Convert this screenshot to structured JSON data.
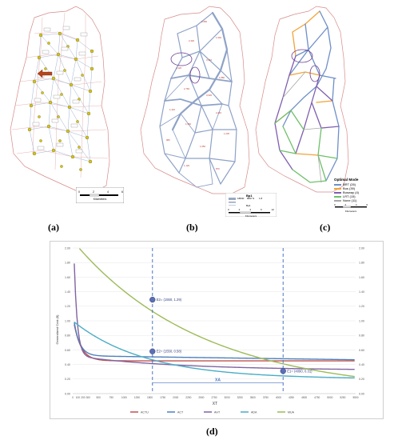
{
  "labels": {
    "a": "(a)",
    "b": "(b)",
    "c": "(c)",
    "d": "(d)"
  },
  "panel_a": {
    "scale_ticks": [
      "0",
      "2",
      "4",
      "6"
    ],
    "scale_unit": "Kilometers"
  },
  "panel_b": {
    "legend_title": "Bp1",
    "legend_entries": [
      "18840",
      "8667.9",
      "1.8"
    ],
    "legend_sub": "Bp4",
    "scale_ticks": [
      "0",
      "2",
      "4",
      "6",
      "12"
    ],
    "scale_unit": "Kilometers"
  },
  "panel_c": {
    "legend_title": "Optimal Mode",
    "modes": [
      {
        "label": "BRT (26)",
        "color": "#6f8fc8"
      },
      {
        "label": "Bus (39)",
        "color": "#f2a33a"
      },
      {
        "label": "Busway (4)",
        "color": "#7f5fb0"
      },
      {
        "label": "LRT (15)",
        "color": "#6fc06a"
      },
      {
        "label": "None (11)",
        "color": "#a7a7a7"
      }
    ],
    "scale_ticks": [
      "0",
      "2",
      "4",
      "6"
    ],
    "scale_unit": "Kilometers"
  },
  "chart_data": {
    "type": "line",
    "ylabel": "Generalized Cost ($)",
    "xlabel": "XT",
    "ylim": [
      0,
      2.0
    ],
    "xlim": [
      0,
      5500
    ],
    "y_ticks_left": [
      "0.00",
      "0.20",
      "0.40",
      "0.60",
      "0.80",
      "1.00",
      "1.20",
      "1.40",
      "1.60",
      "1.80",
      "2.00"
    ],
    "y_ticks_right": [
      "0.00",
      "0.20",
      "0.40",
      "0.60",
      "0.80",
      "1.00",
      "1.20",
      "1.40",
      "1.60",
      "1.80",
      "2.00"
    ],
    "x_ticks": [
      "0",
      "100",
      "200",
      "300",
      "500",
      "750",
      "1000",
      "1250",
      "1500",
      "1750",
      "2000",
      "2250",
      "2500",
      "2750",
      "3000",
      "3250",
      "3500",
      "3750",
      "4000",
      "4250",
      "4500",
      "4750",
      "5000",
      "5250",
      "5500"
    ],
    "series": [
      {
        "name": "ACTU",
        "color": "#c0504d"
      },
      {
        "name": "ACT",
        "color": "#4f81bd"
      },
      {
        "name": "AHT",
        "color": "#8064a2"
      },
      {
        "name": "ADA",
        "color": "#4bacc6"
      },
      {
        "name": "MUA",
        "color": "#9bbb59"
      }
    ],
    "vlines": [
      1550,
      4090
    ],
    "points": [
      {
        "x": 1550,
        "y": 1.29,
        "label": "E2= (1550, 1.29)"
      },
      {
        "x": 1550,
        "y": 0.58,
        "label": "E2= (1550, 0.58)"
      },
      {
        "x": 4090,
        "y": 0.31,
        "label": "E1= (4090, 0.31)"
      }
    ],
    "xa_label": "XA"
  }
}
